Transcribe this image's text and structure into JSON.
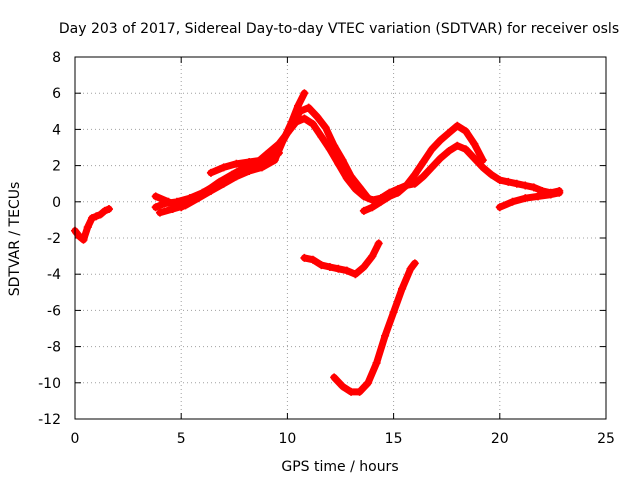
{
  "chart_data": {
    "type": "scatter",
    "title": "Day 203 of 2017, Sidereal Day-to-day VTEC variation (SDTVAR) for receiver osls",
    "xlabel": "GPS time / hours",
    "ylabel": "SDTVAR / TECUs",
    "xlim": [
      0,
      25
    ],
    "ylim": [
      -12,
      8
    ],
    "xticks": [
      0,
      5,
      10,
      15,
      20,
      25
    ],
    "yticks": [
      -12,
      -10,
      -8,
      -6,
      -4,
      -2,
      0,
      2,
      4,
      6,
      8
    ],
    "grid": true,
    "legend": "none",
    "marker": "plus",
    "color": "#ff0000",
    "series": [
      {
        "x": [
          0.0,
          0.2,
          0.4,
          0.6,
          0.8,
          1.0,
          1.2,
          1.4,
          1.6
        ],
        "y": [
          -1.6,
          -1.9,
          -2.1,
          -1.4,
          -0.9,
          -0.8,
          -0.7,
          -0.5,
          -0.4
        ]
      },
      {
        "x": [
          3.8,
          4.2,
          4.8,
          5.4,
          6.0,
          6.6,
          7.2,
          7.8,
          8.4,
          9.0,
          9.6,
          10.0,
          10.4,
          10.8,
          11.2,
          11.6,
          12.0,
          12.4,
          12.8,
          13.2,
          13.6,
          14.0,
          14.4,
          14.8,
          15.2,
          15.6,
          16.0,
          16.4,
          16.8,
          17.2,
          17.6,
          18.0,
          18.4,
          18.8,
          19.2,
          19.6,
          20.0,
          20.4,
          20.8,
          21.2,
          21.6,
          22.0,
          22.4,
          22.8
        ],
        "y": [
          -0.3,
          -0.1,
          0.0,
          0.2,
          0.5,
          0.9,
          1.2,
          1.6,
          2.0,
          2.6,
          3.2,
          3.8,
          4.4,
          4.6,
          4.3,
          3.6,
          2.9,
          2.1,
          1.3,
          0.7,
          0.3,
          0.1,
          0.2,
          0.5,
          0.7,
          0.9,
          1.0,
          1.4,
          1.9,
          2.4,
          2.8,
          3.1,
          2.9,
          2.4,
          1.9,
          1.5,
          1.2,
          1.1,
          1.0,
          0.9,
          0.8,
          0.6,
          0.5,
          0.6
        ]
      },
      {
        "x": [
          3.8,
          4.4,
          5.0,
          5.6,
          6.2,
          6.8,
          7.4,
          8.0,
          8.6,
          9.2,
          9.8,
          10.2,
          10.6,
          11.0,
          11.4,
          11.8,
          12.2,
          12.6,
          13.0,
          13.4,
          13.8
        ],
        "y": [
          0.3,
          0.0,
          -0.3,
          0.1,
          0.6,
          1.1,
          1.5,
          1.9,
          2.2,
          2.5,
          3.4,
          4.2,
          5.0,
          5.2,
          4.7,
          4.1,
          3.1,
          2.3,
          1.4,
          0.8,
          0.2
        ]
      },
      {
        "x": [
          4.0,
          4.6,
          5.2,
          5.8,
          6.4,
          7.0,
          7.6,
          8.2,
          8.8,
          9.4,
          9.8,
          10.2,
          10.5,
          10.8
        ],
        "y": [
          -0.6,
          -0.4,
          -0.2,
          0.2,
          0.6,
          1.0,
          1.4,
          1.7,
          1.9,
          2.3,
          3.4,
          4.4,
          5.3,
          6.0
        ]
      },
      {
        "x": [
          6.4,
          7.0,
          7.6,
          8.2,
          8.8,
          9.2,
          9.6
        ],
        "y": [
          1.6,
          1.9,
          2.1,
          2.2,
          2.3,
          2.5,
          2.7
        ]
      },
      {
        "x": [
          13.6,
          14.0,
          14.4,
          14.8,
          15.2,
          15.6,
          16.0,
          16.4,
          16.8,
          17.2,
          17.6,
          18.0,
          18.4,
          18.8,
          19.2
        ],
        "y": [
          -0.5,
          -0.3,
          0.0,
          0.3,
          0.5,
          0.9,
          1.5,
          2.2,
          2.9,
          3.4,
          3.8,
          4.2,
          3.9,
          3.2,
          2.3
        ]
      },
      {
        "x": [
          20.0,
          20.6,
          21.2,
          21.8,
          22.4,
          22.8
        ],
        "y": [
          -0.3,
          0.0,
          0.2,
          0.3,
          0.4,
          0.5
        ]
      },
      {
        "x": [
          10.8,
          11.2,
          11.6,
          12.0,
          12.4,
          12.8,
          13.2,
          13.6,
          14.0,
          14.3
        ],
        "y": [
          -3.1,
          -3.2,
          -3.5,
          -3.6,
          -3.7,
          -3.8,
          -4.0,
          -3.6,
          -3.0,
          -2.3
        ]
      },
      {
        "x": [
          12.2,
          12.6,
          13.0,
          13.4,
          13.8,
          14.2,
          14.6,
          15.0,
          15.4,
          15.8,
          16.0
        ],
        "y": [
          -9.7,
          -10.2,
          -10.5,
          -10.5,
          -10.0,
          -8.9,
          -7.4,
          -6.1,
          -4.8,
          -3.7,
          -3.4
        ]
      }
    ]
  }
}
